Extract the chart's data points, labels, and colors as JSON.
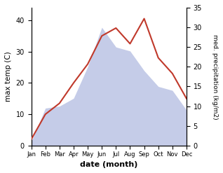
{
  "months": [
    "Jan",
    "Feb",
    "Mar",
    "Apr",
    "May",
    "Jun",
    "Jul",
    "Aug",
    "Sep",
    "Oct",
    "Nov",
    "Dec"
  ],
  "month_x": [
    1,
    2,
    3,
    4,
    5,
    6,
    7,
    8,
    9,
    10,
    11,
    12
  ],
  "temp": [
    2.0,
    10.0,
    13.5,
    20.0,
    26.0,
    35.0,
    37.5,
    32.5,
    40.5,
    28.0,
    23.0,
    15.0
  ],
  "precip": [
    1.0,
    9.5,
    10.0,
    12.0,
    20.0,
    30.0,
    25.0,
    24.0,
    19.0,
    15.0,
    14.0,
    9.0
  ],
  "temp_color": "#c0392b",
  "precip_fill_color": "#c5cce8",
  "temp_ylim": [
    0,
    44
  ],
  "precip_ylim": [
    0,
    34
  ],
  "temp_yticks": [
    0,
    10,
    20,
    30,
    40
  ],
  "precip_yticks": [
    0,
    5,
    10,
    15,
    20,
    25,
    30,
    35
  ],
  "ylabel_left": "max temp (C)",
  "ylabel_right": "med. precipitation (kg/m2)",
  "xlabel": "date (month)"
}
